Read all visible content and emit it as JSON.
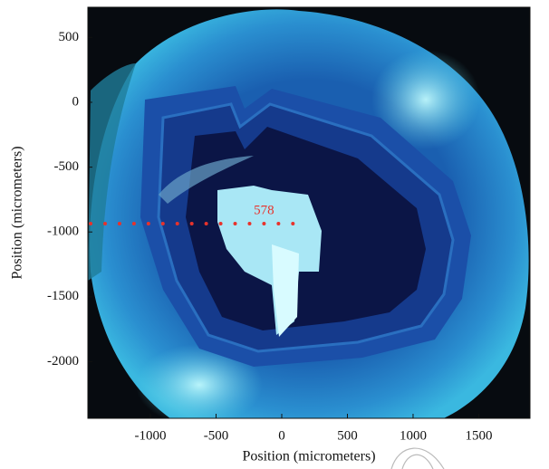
{
  "chart_data": {
    "type": "scatter",
    "x_label": "Position (micrometers)",
    "y_label": "Position (micrometers)",
    "annotation": "578",
    "x": [
      -1455,
      -1345,
      -1235,
      -1125,
      -1015,
      -905,
      -795,
      -685,
      -575,
      -465,
      -355,
      -245,
      -135,
      -25,
      85
    ],
    "y": [
      -936,
      -936,
      -936,
      -936,
      -936,
      -936,
      -936,
      -936,
      -936,
      -936,
      -936,
      -936,
      -936,
      -936,
      -936
    ],
    "color": "#e8322b",
    "xlim": [
      -1476,
      1890
    ],
    "ylim": [
      -2437,
      733
    ],
    "xticks": [
      -1000,
      -500,
      0,
      500,
      1000,
      1500
    ],
    "yticks": [
      -2000,
      -1500,
      -1000,
      -500,
      0,
      500
    ]
  }
}
